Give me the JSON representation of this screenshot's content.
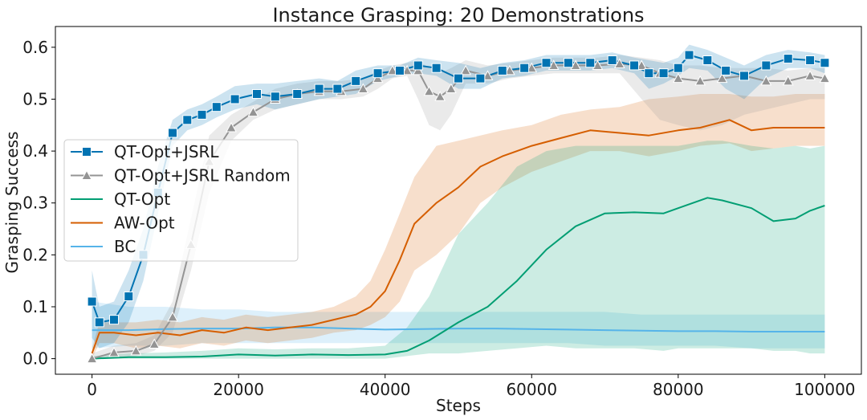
{
  "chart_data": {
    "type": "line",
    "title": "Instance Grasping: 20 Demonstrations",
    "xlabel": "Steps",
    "ylabel": "Grasping Success",
    "xlim": [
      -5000,
      105000
    ],
    "ylim": [
      -0.03,
      0.64
    ],
    "xticks": [
      0,
      20000,
      40000,
      60000,
      80000,
      100000
    ],
    "xtick_labels": [
      "0",
      "20000",
      "40000",
      "60000",
      "80000",
      "100000"
    ],
    "yticks": [
      0.0,
      0.1,
      0.2,
      0.3,
      0.4,
      0.5,
      0.6
    ],
    "ytick_labels": [
      "0.0",
      "0.1",
      "0.2",
      "0.3",
      "0.4",
      "0.5",
      "0.6"
    ],
    "grid": false,
    "legend_position": "center-left",
    "series": [
      {
        "name": "QT-Opt+JSRL",
        "color": "#0173b2",
        "marker": "square",
        "x": [
          0,
          1000,
          3000,
          5000,
          7000,
          9000,
          11000,
          13000,
          15000,
          17000,
          19500,
          22500,
          25000,
          28000,
          31000,
          33500,
          36000,
          39000,
          42000,
          44500,
          47000,
          50000,
          53000,
          56000,
          59000,
          62000,
          65000,
          68000,
          71000,
          74000,
          76000,
          78000,
          80000,
          81500,
          84000,
          86500,
          89000,
          92000,
          95000,
          98000,
          100000
        ],
        "y": [
          0.11,
          0.07,
          0.075,
          0.12,
          0.2,
          0.32,
          0.435,
          0.46,
          0.47,
          0.485,
          0.5,
          0.51,
          0.505,
          0.51,
          0.52,
          0.52,
          0.535,
          0.55,
          0.555,
          0.565,
          0.56,
          0.54,
          0.54,
          0.555,
          0.56,
          0.57,
          0.57,
          0.57,
          0.575,
          0.565,
          0.55,
          0.55,
          0.56,
          0.585,
          0.575,
          0.555,
          0.545,
          0.565,
          0.578,
          0.575,
          0.57
        ],
        "band_lower": [
          0.04,
          0.02,
          0.03,
          0.07,
          0.15,
          0.28,
          0.41,
          0.44,
          0.45,
          0.465,
          0.48,
          0.49,
          0.48,
          0.49,
          0.5,
          0.505,
          0.51,
          0.535,
          0.545,
          0.55,
          0.545,
          0.52,
          0.52,
          0.54,
          0.545,
          0.555,
          0.555,
          0.555,
          0.56,
          0.55,
          0.52,
          0.53,
          0.545,
          0.56,
          0.555,
          0.52,
          0.5,
          0.54,
          0.56,
          0.56,
          0.55
        ],
        "band_upper": [
          0.17,
          0.1,
          0.11,
          0.17,
          0.25,
          0.37,
          0.46,
          0.48,
          0.49,
          0.505,
          0.525,
          0.53,
          0.53,
          0.535,
          0.54,
          0.535,
          0.555,
          0.565,
          0.565,
          0.58,
          0.575,
          0.57,
          0.56,
          0.57,
          0.575,
          0.585,
          0.585,
          0.585,
          0.59,
          0.58,
          0.575,
          0.57,
          0.58,
          0.605,
          0.595,
          0.58,
          0.565,
          0.585,
          0.595,
          0.59,
          0.585
        ]
      },
      {
        "name": "QT-Opt+JSRL Random",
        "color": "#949494",
        "marker": "triangle",
        "x": [
          0,
          3000,
          6000,
          8500,
          11000,
          13500,
          16000,
          19000,
          22000,
          25000,
          28000,
          31000,
          34000,
          37000,
          39000,
          41000,
          43000,
          44500,
          46000,
          47500,
          49000,
          51000,
          54000,
          57000,
          60000,
          63000,
          66000,
          69000,
          72000,
          75000,
          77500,
          80000,
          83000,
          86000,
          89000,
          92000,
          95000,
          98000,
          100000
        ],
        "y": [
          0.0,
          0.012,
          0.015,
          0.028,
          0.08,
          0.22,
          0.38,
          0.445,
          0.475,
          0.5,
          0.51,
          0.515,
          0.515,
          0.52,
          0.54,
          0.555,
          0.555,
          0.555,
          0.515,
          0.505,
          0.52,
          0.555,
          0.545,
          0.555,
          0.56,
          0.565,
          0.565,
          0.565,
          0.568,
          0.565,
          0.55,
          0.54,
          0.535,
          0.54,
          0.545,
          0.535,
          0.535,
          0.545,
          0.54
        ],
        "band_lower": [
          0.0,
          0.0,
          0.005,
          0.015,
          0.05,
          0.17,
          0.32,
          0.42,
          0.46,
          0.48,
          0.49,
          0.5,
          0.5,
          0.505,
          0.52,
          0.54,
          0.545,
          0.5,
          0.45,
          0.44,
          0.47,
          0.53,
          0.53,
          0.54,
          0.545,
          0.55,
          0.55,
          0.55,
          0.55,
          0.5,
          0.46,
          0.45,
          0.44,
          0.45,
          0.47,
          0.48,
          0.49,
          0.5,
          0.5
        ],
        "band_upper": [
          0.01,
          0.025,
          0.03,
          0.045,
          0.11,
          0.27,
          0.43,
          0.47,
          0.495,
          0.52,
          0.53,
          0.535,
          0.535,
          0.54,
          0.555,
          0.565,
          0.57,
          0.575,
          0.56,
          0.55,
          0.56,
          0.575,
          0.565,
          0.57,
          0.575,
          0.58,
          0.58,
          0.58,
          0.585,
          0.58,
          0.575,
          0.565,
          0.565,
          0.56,
          0.56,
          0.56,
          0.555,
          0.56,
          0.56
        ]
      },
      {
        "name": "QT-Opt",
        "color": "#029e73",
        "marker": "none",
        "x": [
          0,
          5000,
          10000,
          15000,
          20000,
          25000,
          30000,
          35000,
          40000,
          43000,
          46000,
          50000,
          54000,
          58000,
          62000,
          66000,
          70000,
          74000,
          78000,
          80000,
          84000,
          86000,
          90000,
          93000,
          96000,
          98000,
          100000
        ],
        "y": [
          0.0,
          0.003,
          0.003,
          0.004,
          0.008,
          0.006,
          0.008,
          0.007,
          0.008,
          0.015,
          0.035,
          0.07,
          0.1,
          0.15,
          0.21,
          0.255,
          0.28,
          0.282,
          0.28,
          0.29,
          0.31,
          0.305,
          0.29,
          0.265,
          0.27,
          0.285,
          0.295
        ],
        "band_lower": [
          0.0,
          0.0,
          0.0,
          0.0,
          0.0,
          0.0,
          0.0,
          0.0,
          0.0,
          0.005,
          0.01,
          0.01,
          0.015,
          0.02,
          0.025,
          0.02,
          0.02,
          0.02,
          0.015,
          0.02,
          0.02,
          0.02,
          0.02,
          0.015,
          0.015,
          0.01,
          0.01
        ],
        "band_upper": [
          0.005,
          0.01,
          0.012,
          0.015,
          0.02,
          0.018,
          0.02,
          0.02,
          0.025,
          0.06,
          0.12,
          0.24,
          0.3,
          0.37,
          0.4,
          0.41,
          0.41,
          0.41,
          0.41,
          0.41,
          0.42,
          0.42,
          0.41,
          0.405,
          0.41,
          0.405,
          0.41
        ]
      },
      {
        "name": "AW-Opt",
        "color": "#d55e00",
        "marker": "none",
        "x": [
          0,
          1000,
          3000,
          6000,
          9000,
          12000,
          15000,
          18000,
          21000,
          24000,
          27000,
          30000,
          33000,
          36000,
          38000,
          40000,
          42000,
          44000,
          47000,
          50000,
          53000,
          56000,
          60000,
          64000,
          68000,
          72000,
          76000,
          80000,
          83000,
          87000,
          90000,
          93000,
          96000,
          100000
        ],
        "y": [
          0.01,
          0.05,
          0.05,
          0.045,
          0.05,
          0.045,
          0.055,
          0.05,
          0.06,
          0.055,
          0.06,
          0.065,
          0.075,
          0.085,
          0.1,
          0.13,
          0.19,
          0.26,
          0.3,
          0.33,
          0.37,
          0.39,
          0.41,
          0.425,
          0.44,
          0.435,
          0.43,
          0.44,
          0.445,
          0.46,
          0.44,
          0.445,
          0.445,
          0.445
        ],
        "band_lower": [
          0.0,
          0.03,
          0.03,
          0.02,
          0.025,
          0.02,
          0.03,
          0.025,
          0.035,
          0.03,
          0.035,
          0.04,
          0.05,
          0.055,
          0.065,
          0.08,
          0.11,
          0.17,
          0.2,
          0.24,
          0.3,
          0.33,
          0.36,
          0.38,
          0.4,
          0.4,
          0.39,
          0.4,
          0.41,
          0.415,
          0.4,
          0.405,
          0.41,
          0.41
        ],
        "band_upper": [
          0.02,
          0.07,
          0.07,
          0.07,
          0.075,
          0.07,
          0.08,
          0.075,
          0.085,
          0.08,
          0.085,
          0.09,
          0.1,
          0.12,
          0.15,
          0.21,
          0.28,
          0.35,
          0.41,
          0.42,
          0.43,
          0.44,
          0.45,
          0.47,
          0.48,
          0.485,
          0.5,
          0.505,
          0.51,
          0.51,
          0.505,
          0.505,
          0.51,
          0.51
        ]
      },
      {
        "name": "BC",
        "color": "#56b4e9",
        "marker": "none",
        "x": [
          0,
          5000,
          10000,
          15000,
          20000,
          25000,
          30000,
          35000,
          40000,
          45000,
          50000,
          55000,
          60000,
          65000,
          70000,
          75000,
          80000,
          85000,
          90000,
          95000,
          100000
        ],
        "y": [
          0.055,
          0.055,
          0.057,
          0.058,
          0.058,
          0.06,
          0.06,
          0.058,
          0.056,
          0.057,
          0.058,
          0.058,
          0.057,
          0.056,
          0.055,
          0.054,
          0.053,
          0.053,
          0.052,
          0.052,
          0.052
        ],
        "band_lower": [
          0.02,
          0.025,
          0.025,
          0.03,
          0.03,
          0.03,
          0.03,
          0.03,
          0.03,
          0.03,
          0.03,
          0.03,
          0.03,
          0.03,
          0.025,
          0.025,
          0.025,
          0.025,
          0.02,
          0.02,
          0.02
        ],
        "band_upper": [
          0.11,
          0.1,
          0.1,
          0.095,
          0.095,
          0.09,
          0.09,
          0.09,
          0.09,
          0.09,
          0.09,
          0.09,
          0.09,
          0.09,
          0.09,
          0.085,
          0.085,
          0.085,
          0.085,
          0.085,
          0.085
        ]
      }
    ]
  }
}
